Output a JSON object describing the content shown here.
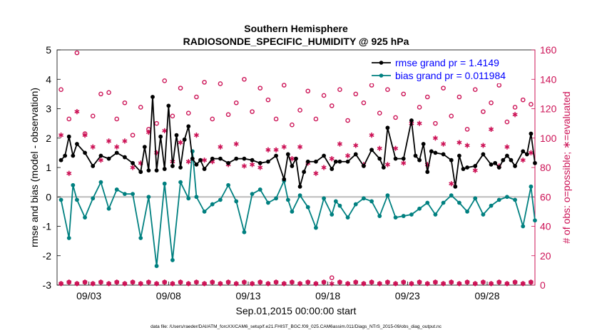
{
  "chart_data": {
    "type": "line",
    "title": "Southern Hemisphere",
    "subtitle": "RADIOSONDE_SPECIFIC_HUMIDITY @ 925 hPa",
    "xlabel": "Sep.01,2015 00:00:00 start",
    "ylabel_left": "rmse and bias (model - observation)",
    "ylabel_right": "# of obs: o=possible; ∗=evaluated",
    "footer": "data file: /Users/raeder/DAI/ATM_forcXX/CAM6_setup/f.e21.FHIST_BGC.f09_025.CAM6assim.011/Diags_NTrS_2015-09/obs_diag_output.nc",
    "xlim": [
      1.0,
      31.0
    ],
    "ylim_left": [
      -3,
      5
    ],
    "ylim_right": [
      0,
      160
    ],
    "yticks_left": [
      -3,
      -2,
      -1,
      0,
      1,
      2,
      3,
      4,
      5
    ],
    "yticks_right": [
      0,
      20,
      40,
      60,
      80,
      100,
      120,
      140,
      160
    ],
    "xticks": [
      3,
      8,
      13,
      18,
      23,
      28
    ],
    "xtick_labels": [
      "09/03",
      "09/08",
      "09/13",
      "09/18",
      "09/23",
      "09/28"
    ],
    "grid": false,
    "legend_position": "top-right",
    "colors": {
      "rmse": "#000000",
      "bias": "#008080",
      "obs": "#cc1155",
      "zero": "#bbbbbb",
      "legend_text": "#0000ff"
    },
    "series": [
      {
        "name": "rmse grand pr = 1.4149",
        "x": [
          1.25,
          1.5,
          1.75,
          2.0,
          2.25,
          2.75,
          3.25,
          3.75,
          4.25,
          4.75,
          5.25,
          5.75,
          6.25,
          6.5,
          6.75,
          7.0,
          7.25,
          7.5,
          7.75,
          8.0,
          8.25,
          8.5,
          8.75,
          9.0,
          9.25,
          9.5,
          9.75,
          10.0,
          10.25,
          10.75,
          11.25,
          11.75,
          12.25,
          12.75,
          13.25,
          13.75,
          14.25,
          14.75,
          15.25,
          15.5,
          15.75,
          16.0,
          16.25,
          16.5,
          16.75,
          17.25,
          17.75,
          18.25,
          18.5,
          18.75,
          19.25,
          19.75,
          20.25,
          20.75,
          21.25,
          21.5,
          21.75,
          22.25,
          22.75,
          23.25,
          23.5,
          23.75,
          24.0,
          24.25,
          24.5,
          24.75,
          25.25,
          25.75,
          26.0,
          26.25,
          26.5,
          26.75,
          27.25,
          27.75,
          28.25,
          28.5,
          28.75,
          29.0,
          29.25,
          29.5,
          29.75,
          30.25,
          30.5,
          30.75,
          31.0
        ],
        "values": [
          1.25,
          1.4,
          2.05,
          1.4,
          1.8,
          1.5,
          1.05,
          1.4,
          1.3,
          1.5,
          1.35,
          1.15,
          0.85,
          1.7,
          0.9,
          3.4,
          0.9,
          2.05,
          0.95,
          3.1,
          1.05,
          2.1,
          1.0,
          1.95,
          2.4,
          1.3,
          1.1,
          1.25,
          0.95,
          1.3,
          1.3,
          1.15,
          1.3,
          1.3,
          1.25,
          1.15,
          1.2,
          1.4,
          0.6,
          1.45,
          1.05,
          1.3,
          0.35,
          0.85,
          1.2,
          1.2,
          1.4,
          0.95,
          1.2,
          1.2,
          1.2,
          1.45,
          1.05,
          1.6,
          1.3,
          1.0,
          2.35,
          1.3,
          1.3,
          2.6,
          1.4,
          1.25,
          1.8,
          0.85,
          1.55,
          1.5,
          1.45,
          1.25,
          0.35,
          1.4,
          0.95,
          1.0,
          1.05,
          1.45,
          1.1,
          1.15,
          1.0,
          1.25,
          1.4,
          1.25,
          1.05,
          1.55,
          1.45,
          2.15,
          1.15
        ]
      },
      {
        "name": "bias grand pr = 0.011984",
        "x": [
          1.25,
          1.75,
          2.0,
          2.25,
          2.75,
          3.25,
          3.75,
          4.25,
          4.75,
          5.25,
          5.75,
          6.25,
          6.75,
          7.25,
          7.75,
          8.25,
          8.75,
          9.25,
          9.5,
          9.75,
          10.25,
          10.75,
          11.25,
          11.75,
          12.25,
          12.75,
          13.25,
          13.75,
          14.25,
          14.75,
          15.25,
          15.5,
          15.75,
          16.25,
          16.75,
          17.25,
          17.75,
          18.25,
          18.5,
          18.75,
          19.25,
          19.75,
          20.25,
          20.75,
          21.25,
          21.75,
          22.25,
          22.75,
          23.25,
          23.75,
          24.25,
          24.75,
          25.25,
          25.75,
          26.25,
          26.75,
          27.25,
          27.75,
          28.25,
          28.75,
          29.25,
          29.75,
          30.25,
          30.75,
          31.0
        ],
        "values": [
          -0.1,
          -1.4,
          0.4,
          -0.1,
          -0.7,
          -0.05,
          0.5,
          -0.4,
          0.25,
          0.1,
          0.1,
          -1.4,
          0.0,
          -2.35,
          0.45,
          -2.15,
          0.5,
          -0.05,
          1.55,
          0.0,
          -0.5,
          -0.25,
          -0.1,
          0.4,
          -0.15,
          -1.2,
          0.1,
          0.25,
          -0.2,
          -0.05,
          0.55,
          -0.1,
          -0.5,
          0.05,
          -0.35,
          -1.05,
          -0.05,
          -0.6,
          -0.15,
          -0.3,
          -0.7,
          -0.25,
          -0.05,
          -0.15,
          -0.65,
          0.05,
          -0.7,
          -0.65,
          -0.6,
          -0.4,
          -0.2,
          -0.6,
          -0.2,
          0.05,
          -0.2,
          -0.5,
          -0.05,
          -0.6,
          -0.3,
          -0.1,
          0.0,
          -0.1,
          -1.0,
          0.35,
          -0.8
        ]
      },
      {
        "name": "obs possible",
        "x": [
          1.25,
          1.75,
          2.25,
          2.75,
          3.25,
          3.75,
          4.25,
          4.75,
          5.25,
          5.75,
          6.25,
          6.75,
          7.25,
          7.75,
          8.25,
          8.75,
          9.25,
          9.75,
          10.25,
          10.75,
          11.25,
          11.75,
          12.25,
          12.75,
          13.25,
          13.75,
          14.25,
          14.75,
          15.25,
          15.75,
          16.25,
          16.75,
          17.25,
          17.75,
          18.25,
          18.75,
          19.25,
          19.75,
          20.25,
          20.75,
          21.25,
          21.75,
          22.25,
          22.75,
          23.25,
          23.75,
          24.25,
          24.75,
          25.25,
          25.75,
          26.25,
          26.75,
          27.25,
          27.75,
          28.25,
          28.75,
          29.25,
          29.75,
          30.25,
          30.75
        ],
        "values": [
          133,
          113,
          158,
          103,
          115,
          130,
          131,
          113,
          124,
          102,
          121,
          106,
          110,
          139,
          115,
          134,
          117,
          128,
          138,
          113,
          137,
          116,
          124,
          140,
          118,
          134,
          126,
          113,
          136,
          109,
          119,
          132,
          113,
          129,
          122,
          133,
          112,
          130,
          124,
          136,
          117,
          133,
          114,
          130,
          155,
          121,
          128,
          110,
          134,
          115,
          128,
          106,
          133,
          118,
          124,
          136,
          111,
          121,
          126,
          123
        ]
      },
      {
        "name": "obs evaluated",
        "x": [
          1.25,
          1.75,
          2.25,
          2.75,
          3.25,
          3.75,
          4.25,
          4.75,
          5.25,
          5.75,
          6.25,
          6.75,
          7.25,
          7.75,
          8.25,
          8.75,
          9.25,
          9.75,
          10.25,
          10.75,
          11.25,
          11.75,
          12.25,
          12.75,
          13.25,
          13.75,
          14.25,
          14.75,
          15.25,
          15.75,
          16.25,
          16.75,
          17.25,
          17.75,
          18.25,
          18.75,
          19.25,
          19.75,
          20.25,
          20.75,
          21.25,
          21.75,
          22.25,
          22.75,
          23.25,
          23.75,
          24.25,
          24.75,
          25.25,
          25.75,
          26.25,
          26.75,
          27.25,
          27.75,
          28.25,
          28.75,
          29.25,
          29.75,
          30.25,
          30.75
        ],
        "values": [
          102,
          76,
          118,
          102,
          94,
          85,
          98,
          94,
          98,
          80,
          83,
          104,
          90,
          105,
          84,
          97,
          84,
          102,
          85,
          84,
          94,
          82,
          96,
          81,
          82,
          80,
          92,
          92,
          94,
          86,
          94,
          83,
          76,
          80,
          86,
          96,
          88,
          95,
          82,
          102,
          93,
          82,
          93,
          83,
          110,
          110,
          82,
          100,
          96,
          69,
          97,
          95,
          78,
          95,
          106,
          81,
          94,
          116,
          85,
          90
        ]
      },
      {
        "name": "obs possible (low stations)",
        "x": [
          1.25,
          1.75,
          2.25,
          2.75,
          3.25,
          3.75,
          4.25,
          4.75,
          5.25,
          5.75,
          6.25,
          6.75,
          7.25,
          7.75,
          8.25,
          8.75,
          9.25,
          9.75,
          10.25,
          10.75,
          11.25,
          11.75,
          12.25,
          12.75,
          13.25,
          13.75,
          14.25,
          14.75,
          15.25,
          15.75,
          16.25,
          16.75,
          17.25,
          17.75,
          18.25,
          18.75,
          19.25,
          19.75,
          20.25,
          20.75,
          21.25,
          21.75,
          22.25,
          22.75,
          23.25,
          23.75,
          24.25,
          24.75,
          25.25,
          25.75,
          26.25,
          26.75,
          27.25,
          27.75,
          28.25,
          28.75,
          29.25,
          29.75,
          30.25,
          30.75
        ],
        "values": [
          1,
          2,
          1,
          2,
          1,
          2,
          1,
          2,
          1,
          2,
          1,
          2,
          1,
          2,
          1,
          2,
          1,
          2,
          1,
          2,
          1,
          2,
          1,
          2,
          1,
          2,
          1,
          2,
          1,
          2,
          1,
          2,
          1,
          2,
          5,
          2,
          1,
          2,
          1,
          2,
          1,
          2,
          1,
          2,
          1,
          2,
          1,
          2,
          1,
          2,
          1,
          2,
          1,
          2,
          1,
          2,
          1,
          2,
          1,
          2
        ]
      },
      {
        "name": "obs evaluated (low stations)",
        "x": [
          1.25,
          1.75,
          2.25,
          2.75,
          3.25,
          3.75,
          4.25,
          4.75,
          5.25,
          5.75,
          6.25,
          6.75,
          7.25,
          7.75,
          8.25,
          8.75,
          9.25,
          9.75,
          10.25,
          10.75,
          11.25,
          11.75,
          12.25,
          12.75,
          13.25,
          13.75,
          14.25,
          14.75,
          15.25,
          15.75,
          16.25,
          16.75,
          17.25,
          17.75,
          18.25,
          18.75,
          19.25,
          19.75,
          20.25,
          20.75,
          21.25,
          21.75,
          22.25,
          22.75,
          23.25,
          23.75,
          24.25,
          24.75,
          25.25,
          25.75,
          26.25,
          26.75,
          27.25,
          27.75,
          28.25,
          28.75,
          29.25,
          29.75,
          30.25,
          30.75
        ],
        "values": [
          1,
          2,
          1,
          2,
          1,
          2,
          1,
          2,
          1,
          2,
          1,
          2,
          1,
          2,
          1,
          2,
          1,
          2,
          1,
          2,
          1,
          2,
          1,
          2,
          1,
          2,
          1,
          2,
          1,
          2,
          1,
          2,
          1,
          2,
          1,
          2,
          1,
          2,
          1,
          2,
          1,
          2,
          1,
          2,
          1,
          2,
          1,
          2,
          1,
          2,
          1,
          2,
          1,
          2,
          1,
          2,
          1,
          2,
          1,
          2
        ]
      }
    ]
  }
}
